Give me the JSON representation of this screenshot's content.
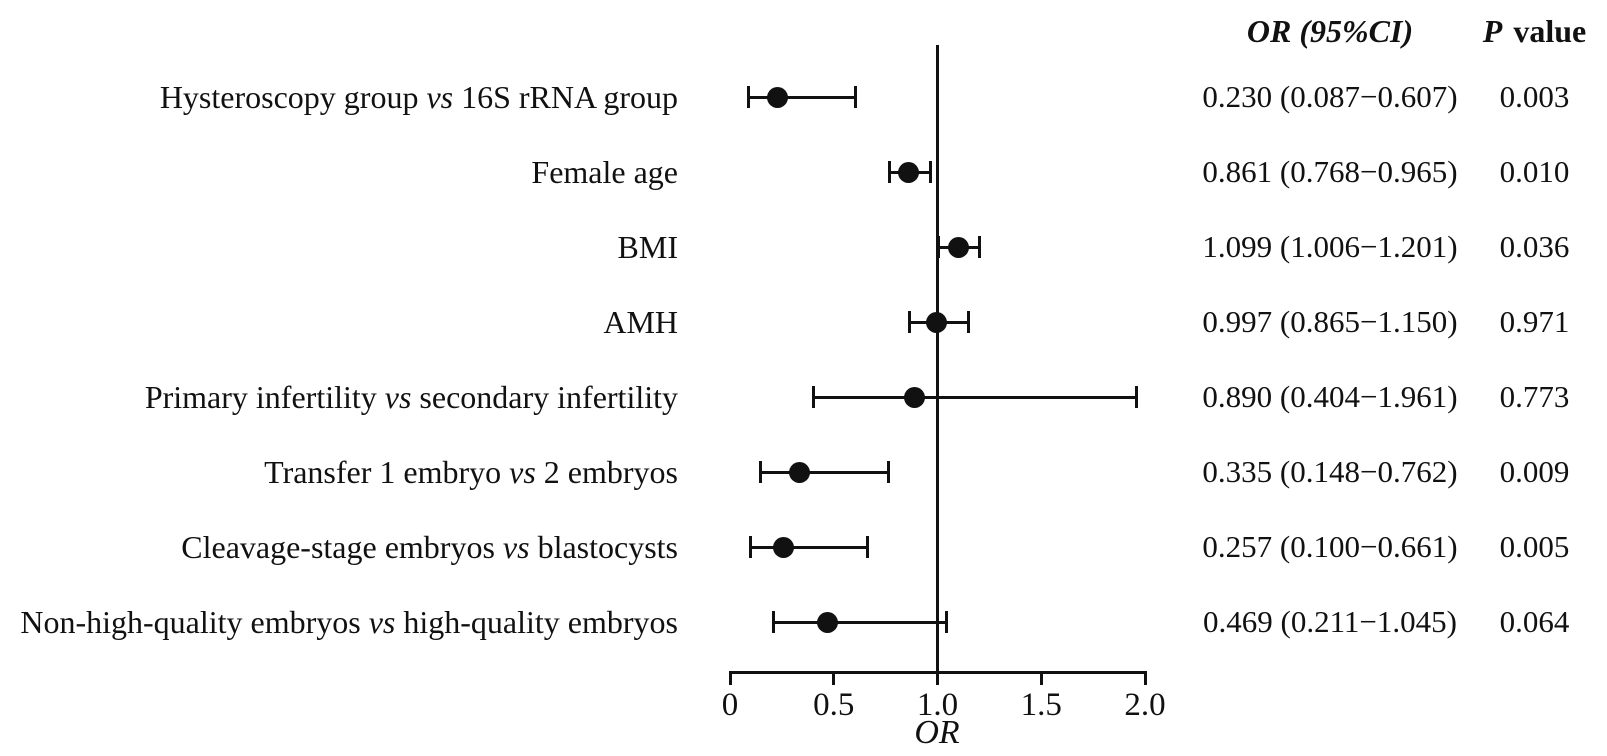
{
  "chart_data": {
    "type": "forest",
    "title": "",
    "xlabel": "OR",
    "xlim": [
      0,
      2.0
    ],
    "grid": false,
    "reference_line": 1.0,
    "x_ticks": [
      {
        "value": 0,
        "label": "0"
      },
      {
        "value": 0.5,
        "label": "0.5"
      },
      {
        "value": 1.0,
        "label": "1.0"
      },
      {
        "value": 1.5,
        "label": "1.5"
      },
      {
        "value": 2.0,
        "label": "2.0"
      }
    ],
    "columns": {
      "or_ci_header": "OR (95%CI)",
      "p_header_italic": "P",
      "p_header_rest": "value"
    },
    "rows": [
      {
        "label_pre": "Hysteroscopy group",
        "label_vs": "vs",
        "label_post": "16S rRNA group",
        "or": "0.230",
        "ci_low": "0.087",
        "ci_high": "0.607",
        "p": "0.003"
      },
      {
        "label_pre": "Female age",
        "label_vs": "",
        "label_post": "",
        "or": "0.861",
        "ci_low": "0.768",
        "ci_high": "0.965",
        "p": "0.010"
      },
      {
        "label_pre": "BMI",
        "label_vs": "",
        "label_post": "",
        "or": "1.099",
        "ci_low": "1.006",
        "ci_high": "1.201",
        "p": "0.036"
      },
      {
        "label_pre": "AMH",
        "label_vs": "",
        "label_post": "",
        "or": "0.997",
        "ci_low": "0.865",
        "ci_high": "1.150",
        "p": "0.971"
      },
      {
        "label_pre": "Primary infertility",
        "label_vs": "vs",
        "label_post": "secondary infertility",
        "or": "0.890",
        "ci_low": "0.404",
        "ci_high": "1.961",
        "p": "0.773"
      },
      {
        "label_pre": "Transfer 1 embryo",
        "label_vs": "vs",
        "label_post": "2 embryos",
        "or": "0.335",
        "ci_low": "0.148",
        "ci_high": "0.762",
        "p": "0.009"
      },
      {
        "label_pre": "Cleavage-stage embryos",
        "label_vs": "vs",
        "label_post": "blastocysts",
        "or": "0.257",
        "ci_low": "0.100",
        "ci_high": "0.661",
        "p": "0.005"
      },
      {
        "label_pre": "Non-high-quality embryos",
        "label_vs": "vs",
        "label_post": "high-quality embryos",
        "or": "0.469",
        "ci_low": "0.211",
        "ci_high": "1.045",
        "p": "0.064"
      }
    ],
    "colors": {
      "ink": "#111111",
      "background": "#ffffff"
    },
    "legend": null
  }
}
